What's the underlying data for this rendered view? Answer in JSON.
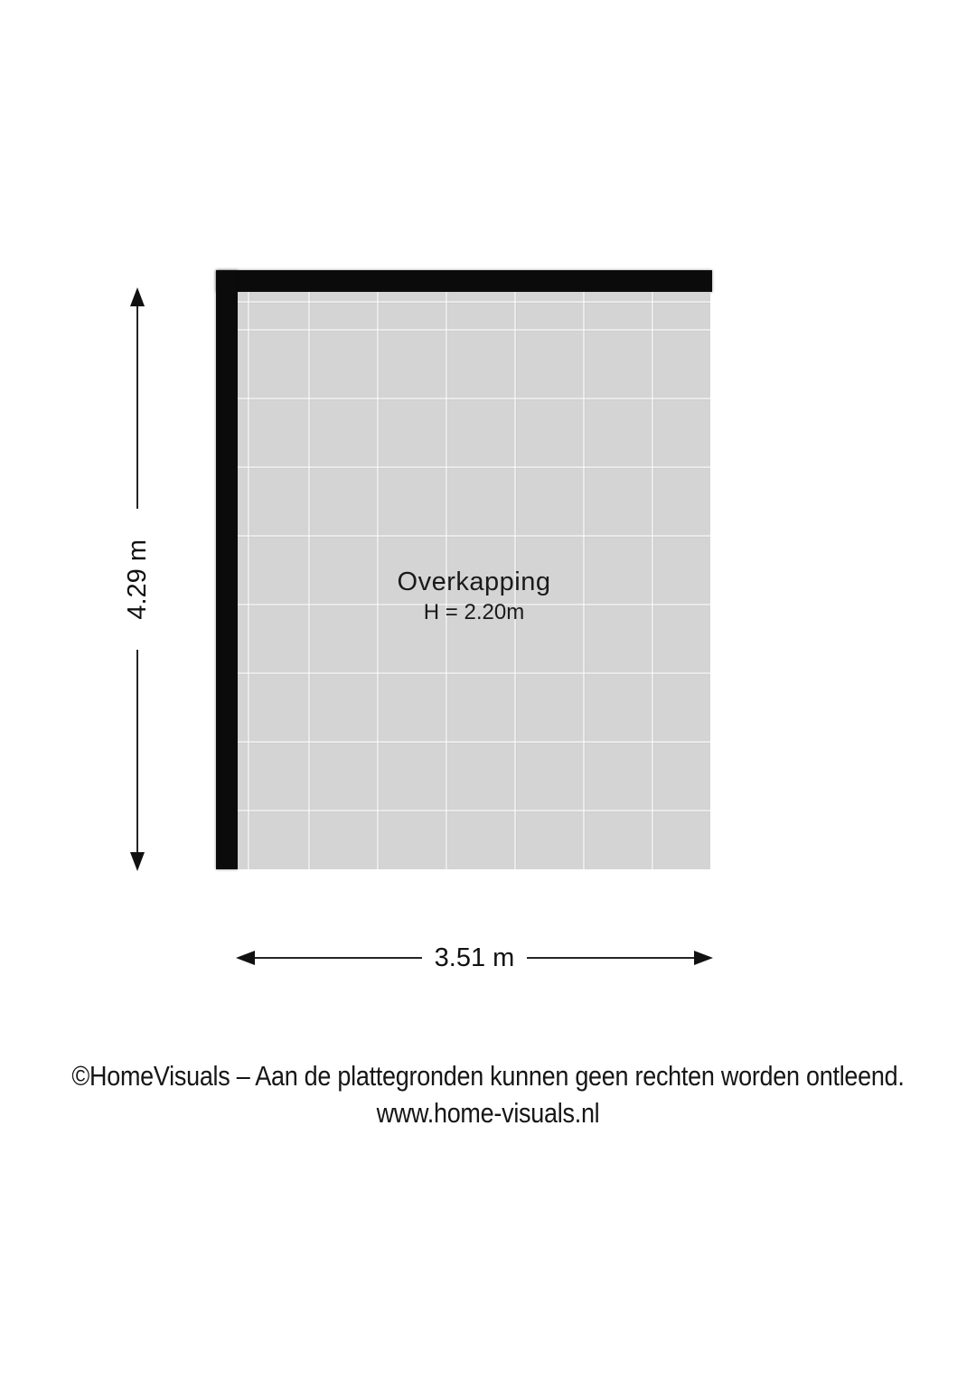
{
  "floorplan": {
    "room": {
      "label": "Overkapping",
      "height_label": "H = 2.20m"
    },
    "dimensions": {
      "vertical": "4.29 m",
      "horizontal": "3.51 m"
    },
    "colors": {
      "wall": "#0b0b0b",
      "floor": "#d4d4d4",
      "text": "#1c1c1c"
    }
  },
  "footer": {
    "line1": "©HomeVisuals – Aan de plattegronden kunnen geen rechten worden ontleend.",
    "line2": "www.home-visuals.nl"
  }
}
